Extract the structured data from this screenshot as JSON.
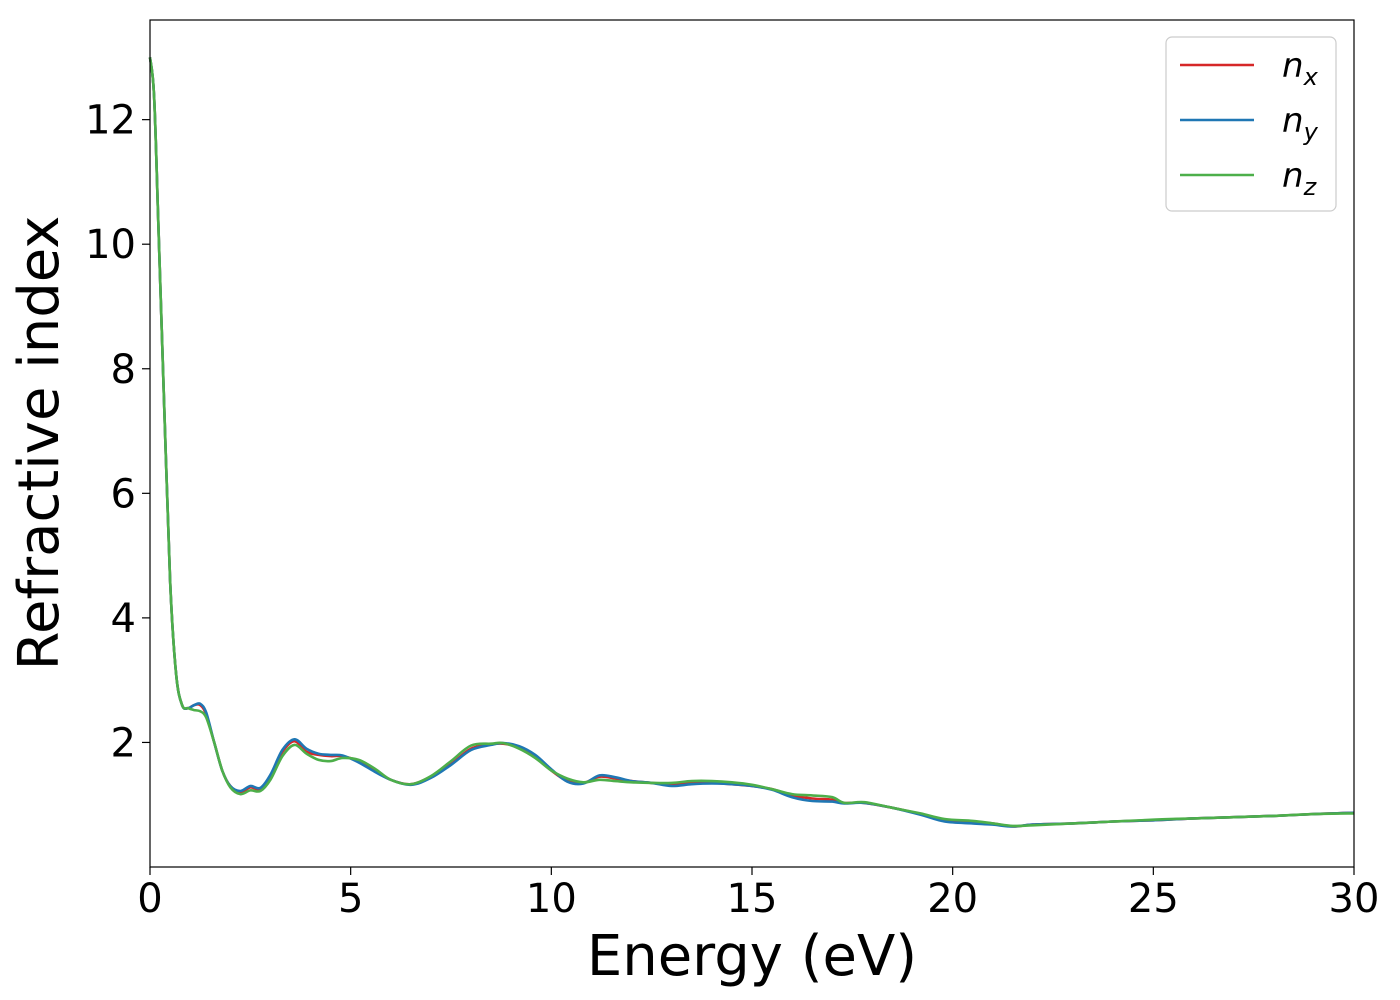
{
  "chart_data": {
    "type": "line",
    "title": "",
    "xlabel": "Energy (eV)",
    "ylabel": "Refractive index",
    "xlim": [
      0,
      30
    ],
    "ylim": [
      0,
      13.6
    ],
    "xticks": [
      0,
      5,
      10,
      15,
      20,
      25,
      30
    ],
    "yticks": [
      2,
      4,
      6,
      8,
      10,
      12
    ],
    "xtick_labels": [
      "0",
      "5",
      "10",
      "15",
      "20",
      "25",
      "30"
    ],
    "ytick_labels": [
      "2",
      "4",
      "6",
      "8",
      "10",
      "12"
    ],
    "grid": false,
    "legend": {
      "placement": "top-right",
      "entries": [
        {
          "base": "n",
          "sub": "x"
        },
        {
          "base": "n",
          "sub": "y"
        },
        {
          "base": "n",
          "sub": "z"
        }
      ]
    },
    "series": [
      {
        "name": "n_x",
        "color": "#d62728",
        "x": [
          0,
          0.1,
          0.2,
          0.35,
          0.5,
          0.65,
          0.8,
          0.95,
          1.1,
          1.25,
          1.4,
          1.6,
          1.8,
          2.0,
          2.25,
          2.5,
          2.75,
          3.0,
          3.3,
          3.6,
          3.9,
          4.2,
          4.5,
          4.8,
          5.2,
          5.6,
          6.0,
          6.5,
          7.0,
          7.5,
          8.0,
          8.5,
          8.8,
          9.2,
          9.6,
          10.0,
          10.4,
          10.8,
          11.2,
          11.6,
          12.0,
          12.5,
          13.0,
          13.5,
          14.0,
          14.5,
          15.0,
          15.5,
          16.0,
          16.5,
          17.0,
          17.3,
          17.8,
          18.5,
          19.2,
          19.8,
          20.5,
          21.0,
          21.5,
          22.0,
          23.0,
          24.0,
          25.0,
          26.0,
          27.0,
          28.0,
          29.0,
          30.0
        ],
        "y": [
          13.0,
          12.4,
          10.5,
          7.5,
          4.6,
          3.1,
          2.6,
          2.55,
          2.6,
          2.6,
          2.45,
          2.0,
          1.55,
          1.3,
          1.2,
          1.28,
          1.25,
          1.45,
          1.85,
          2.02,
          1.85,
          1.8,
          1.78,
          1.78,
          1.7,
          1.55,
          1.4,
          1.33,
          1.45,
          1.65,
          1.9,
          1.97,
          1.98,
          1.92,
          1.78,
          1.55,
          1.38,
          1.35,
          1.45,
          1.42,
          1.38,
          1.35,
          1.32,
          1.35,
          1.35,
          1.33,
          1.3,
          1.25,
          1.15,
          1.1,
          1.08,
          1.03,
          1.03,
          0.95,
          0.85,
          0.75,
          0.72,
          0.7,
          0.65,
          0.68,
          0.7,
          0.73,
          0.75,
          0.78,
          0.8,
          0.82,
          0.85,
          0.87
        ]
      },
      {
        "name": "n_y",
        "color": "#1f77b4",
        "x": [
          0,
          0.1,
          0.2,
          0.35,
          0.5,
          0.65,
          0.8,
          0.95,
          1.1,
          1.25,
          1.4,
          1.6,
          1.8,
          2.0,
          2.25,
          2.5,
          2.75,
          3.0,
          3.3,
          3.6,
          3.9,
          4.2,
          4.5,
          4.8,
          5.2,
          5.6,
          6.0,
          6.5,
          7.0,
          7.5,
          8.0,
          8.5,
          8.8,
          9.2,
          9.6,
          10.0,
          10.4,
          10.8,
          11.2,
          11.6,
          12.0,
          12.5,
          13.0,
          13.5,
          14.0,
          14.5,
          15.0,
          15.5,
          16.0,
          16.5,
          17.0,
          17.3,
          17.8,
          18.5,
          19.2,
          19.8,
          20.5,
          21.0,
          21.5,
          22.0,
          23.0,
          24.0,
          25.0,
          26.0,
          27.0,
          28.0,
          29.0,
          30.0
        ],
        "y": [
          13.0,
          12.4,
          10.5,
          7.5,
          4.6,
          3.1,
          2.6,
          2.55,
          2.6,
          2.62,
          2.48,
          2.0,
          1.55,
          1.3,
          1.22,
          1.3,
          1.27,
          1.48,
          1.88,
          2.05,
          1.9,
          1.82,
          1.8,
          1.79,
          1.68,
          1.53,
          1.4,
          1.32,
          1.43,
          1.64,
          1.88,
          1.96,
          1.99,
          1.94,
          1.8,
          1.57,
          1.37,
          1.34,
          1.47,
          1.44,
          1.38,
          1.35,
          1.3,
          1.33,
          1.34,
          1.33,
          1.3,
          1.24,
          1.12,
          1.06,
          1.05,
          1.02,
          1.03,
          0.95,
          0.84,
          0.73,
          0.7,
          0.68,
          0.65,
          0.68,
          0.7,
          0.73,
          0.75,
          0.78,
          0.8,
          0.82,
          0.85,
          0.87
        ]
      },
      {
        "name": "n_z",
        "color": "#4daf4a",
        "x": [
          0,
          0.1,
          0.2,
          0.35,
          0.5,
          0.65,
          0.8,
          0.95,
          1.1,
          1.25,
          1.4,
          1.6,
          1.8,
          2.0,
          2.25,
          2.5,
          2.75,
          3.0,
          3.3,
          3.6,
          3.9,
          4.2,
          4.5,
          4.8,
          5.2,
          5.6,
          6.0,
          6.5,
          7.0,
          7.5,
          8.0,
          8.5,
          8.8,
          9.2,
          9.6,
          10.0,
          10.4,
          10.8,
          11.2,
          11.6,
          12.0,
          12.5,
          13.0,
          13.5,
          14.0,
          14.5,
          15.0,
          15.5,
          16.0,
          16.5,
          17.0,
          17.3,
          17.8,
          18.5,
          19.2,
          19.8,
          20.5,
          21.0,
          21.5,
          22.0,
          23.0,
          24.0,
          25.0,
          26.0,
          27.0,
          28.0,
          29.0,
          30.0
        ],
        "y": [
          13.0,
          12.4,
          10.5,
          7.5,
          4.6,
          3.1,
          2.6,
          2.55,
          2.52,
          2.5,
          2.4,
          2.0,
          1.55,
          1.28,
          1.17,
          1.23,
          1.22,
          1.4,
          1.78,
          1.96,
          1.82,
          1.72,
          1.7,
          1.75,
          1.72,
          1.58,
          1.4,
          1.33,
          1.46,
          1.7,
          1.95,
          1.98,
          1.99,
          1.9,
          1.75,
          1.55,
          1.42,
          1.36,
          1.4,
          1.38,
          1.36,
          1.35,
          1.35,
          1.38,
          1.38,
          1.36,
          1.32,
          1.25,
          1.17,
          1.15,
          1.12,
          1.03,
          1.04,
          0.95,
          0.86,
          0.77,
          0.74,
          0.7,
          0.66,
          0.67,
          0.7,
          0.73,
          0.76,
          0.78,
          0.8,
          0.82,
          0.85,
          0.86
        ]
      }
    ]
  }
}
